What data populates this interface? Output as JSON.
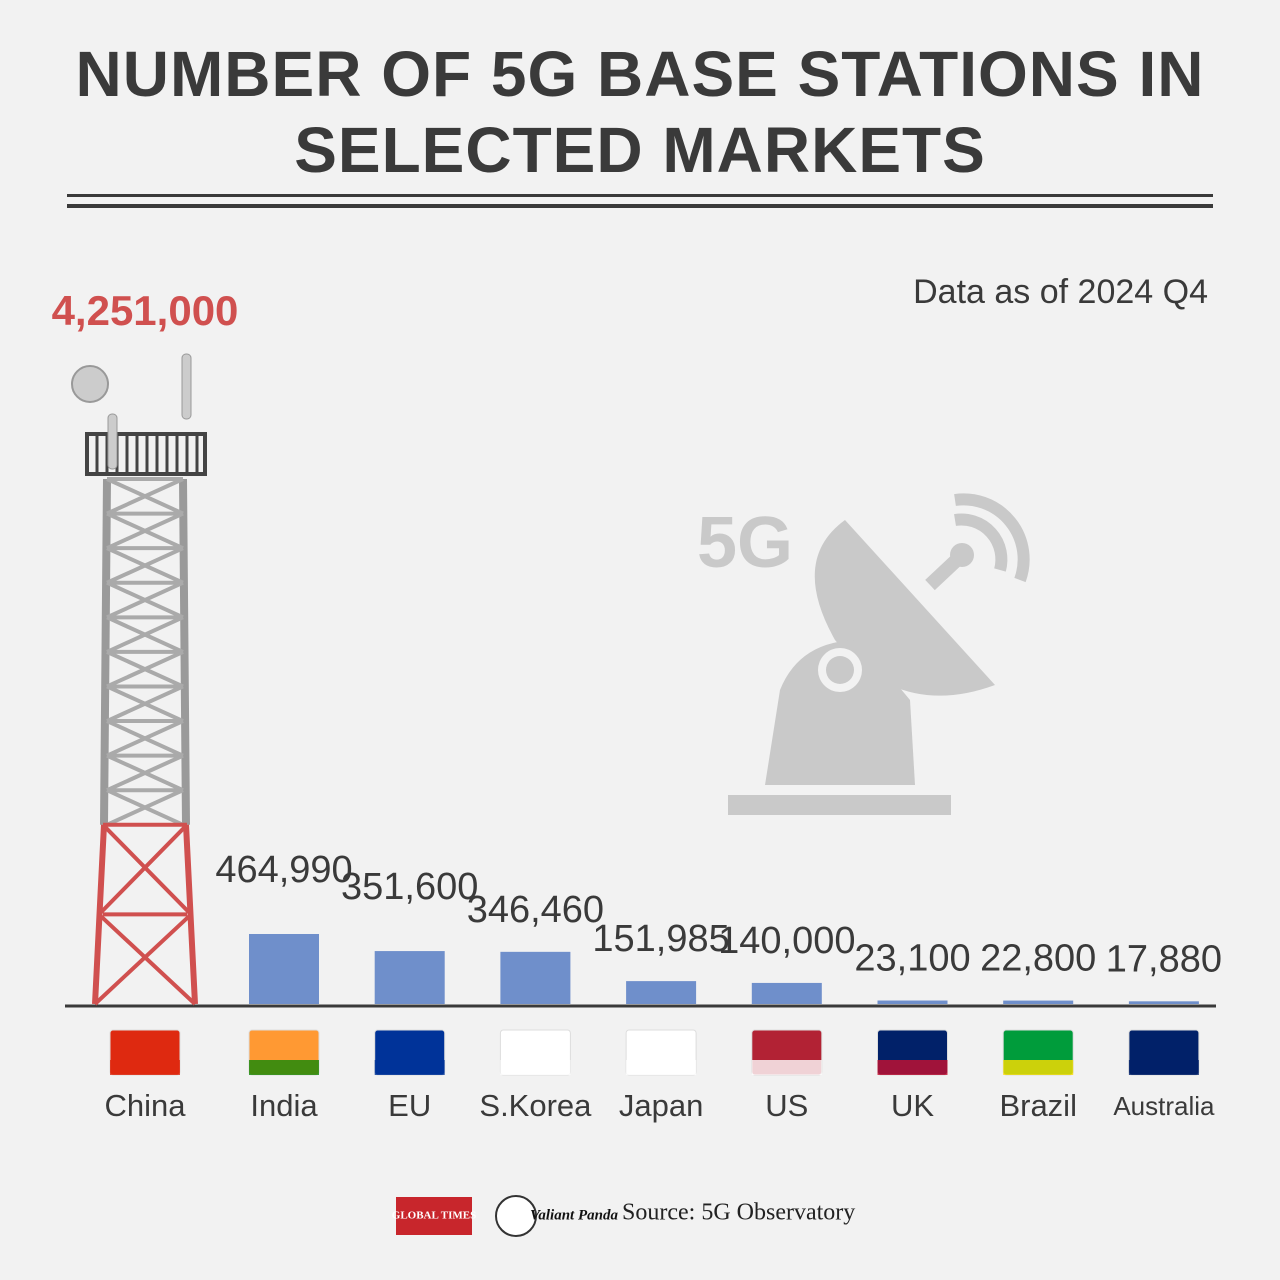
{
  "chart_data": {
    "type": "bar",
    "title": "NUMBER OF 5G BASE STATIONS IN SELECTED MARKETS",
    "subtitle": "Data as of 2024 Q4",
    "categories": [
      "China",
      "India",
      "EU",
      "S.Korea",
      "Japan",
      "US",
      "UK",
      "Brazil",
      "Australia"
    ],
    "values": [
      4251000,
      464990,
      351600,
      346460,
      151985,
      140000,
      23100,
      22800,
      17880
    ],
    "value_labels": [
      "4,251,000",
      "464,990",
      "351,600",
      "346,460",
      "151,985",
      "140,000",
      "23,100",
      "22,800",
      "17,880"
    ],
    "colors": [
      "#d0504f",
      "#6f8fcb",
      "#6f8fcb",
      "#6f8fcb",
      "#6f8fcb",
      "#6f8fcb",
      "#6f8fcb",
      "#6f8fcb",
      "#6f8fcb"
    ],
    "illustration_text": "5G",
    "source": "Source: 5G Observatory",
    "logos": [
      "GLOBAL TIMES",
      "Valiant Panda"
    ]
  }
}
